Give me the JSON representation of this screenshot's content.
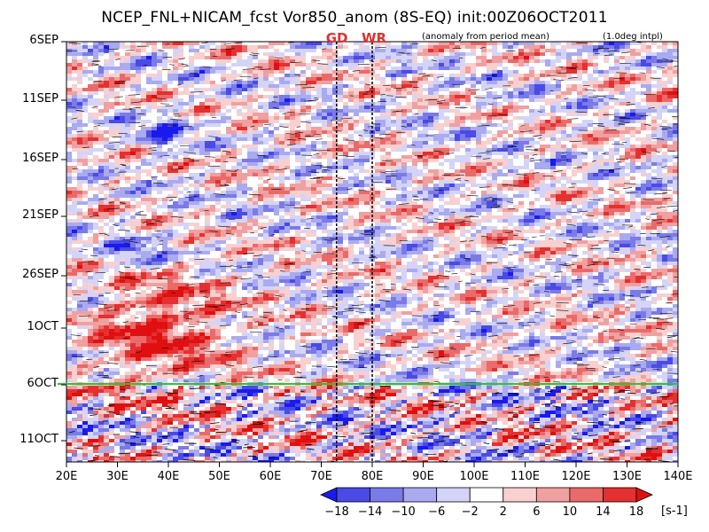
{
  "title": "NCEP_FNL+NICAM_fcst Vor850_anom (8S-EQ) init:00Z06OCT2011",
  "subtitle_left": "(anomaly from period mean)",
  "subtitle_right": "(1.0deg intpl)",
  "chart_data": {
    "type": "heatmap",
    "title": "NCEP_FNL+NICAM_fcst Vor850_anom (8S-EQ) init:00Z06OCT2011",
    "xlabel": "",
    "ylabel": "",
    "x_range": [
      "20E",
      "140E"
    ],
    "y_range": [
      "6SEP",
      "14OCT"
    ],
    "x_ticks": [
      "20E",
      "30E",
      "40E",
      "50E",
      "60E",
      "70E",
      "80E",
      "90E",
      "100E",
      "110E",
      "120E",
      "130E",
      "140E"
    ],
    "y_ticks": [
      "6SEP",
      "11SEP",
      "16SEP",
      "21SEP",
      "26SEP",
      "1OCT",
      "6OCT",
      "11OCT"
    ],
    "init_line": "6OCT",
    "init_line_color": "#22cc22",
    "markers": [
      {
        "label": "GD",
        "lon": 73
      },
      {
        "label": "WR",
        "lon": 80
      }
    ],
    "colorbar": {
      "levels": [
        "-18",
        "-14",
        "-10",
        "-6",
        "-2",
        "2",
        "6",
        "10",
        "14",
        "18"
      ],
      "colors": [
        "#1a1aee",
        "#4a4ae6",
        "#7a7ae8",
        "#aaaaf0",
        "#d4d4f8",
        "#ffffff",
        "#f8d0d0",
        "#f0a0a0",
        "#ea6a6a",
        "#e43030",
        "#e01010"
      ],
      "unit": "[s-1]"
    }
  }
}
